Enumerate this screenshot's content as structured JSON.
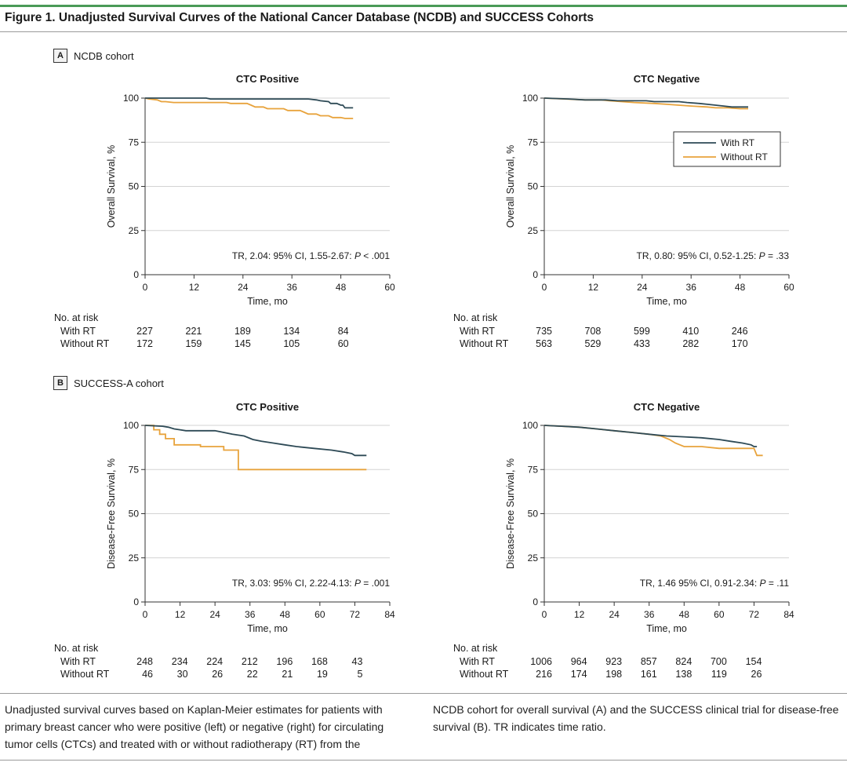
{
  "figure": {
    "title": "Figure 1. Unadjusted Survival Curves of the National Cancer Database (NCDB) and SUCCESS Cohorts",
    "caption_left": "Unadjusted survival curves based on Kaplan-Meier estimates for patients with primary breast cancer who were positive (left) or negative (right) for circulating tumor cells (CTCs) and treated with or without radiotherapy (RT) from the",
    "caption_right": "NCDB cohort for overall survival (A) and the SUCCESS clinical trial for disease-free survival (B). TR indicates time ratio."
  },
  "panels": [
    {
      "letter": "A",
      "label": "NCDB cohort"
    },
    {
      "letter": "B",
      "label": "SUCCESS-A cohort"
    }
  ],
  "colors": {
    "with_rt": "#2e4a56",
    "without_rt": "#e8a33c",
    "axis": "#333333",
    "grid": "#d3d3d3"
  },
  "legend": [
    "With RT",
    "Without RT"
  ],
  "risk_table_labels": {
    "header": "No. at risk",
    "with_rt": "With RT",
    "without_rt": "Without RT"
  },
  "chart_data": [
    {
      "type": "line",
      "panel": "A",
      "title": "CTC Positive",
      "xlabel": "Time, mo",
      "ylabel": "Overall Survival, %",
      "xlim": [
        0,
        60
      ],
      "ylim": [
        0,
        100
      ],
      "xticks": [
        0,
        12,
        24,
        36,
        48,
        60
      ],
      "yticks": [
        0,
        25,
        50,
        75,
        100
      ],
      "annotation": {
        "pre": "TR, 2.04: 95% CI, 1.55-2.67: ",
        "italic": "P",
        "post": " < .001"
      },
      "legend": false,
      "series": [
        {
          "name": "With RT",
          "points": [
            [
              0,
              100
            ],
            [
              15,
              100
            ],
            [
              16,
              99.5
            ],
            [
              25,
              99.5
            ],
            [
              40,
              99.5
            ],
            [
              42,
              99
            ],
            [
              43,
              98.5
            ],
            [
              45,
              98
            ],
            [
              45.5,
              97
            ],
            [
              47,
              97
            ],
            [
              48,
              96
            ],
            [
              48.5,
              96
            ],
            [
              49,
              94.5
            ],
            [
              51,
              94.5
            ]
          ]
        },
        {
          "name": "Without RT",
          "points": [
            [
              0,
              100
            ],
            [
              1,
              99.5
            ],
            [
              3,
              99
            ],
            [
              4,
              98
            ],
            [
              5,
              98
            ],
            [
              7,
              97.5
            ],
            [
              20,
              97.5
            ],
            [
              21,
              97
            ],
            [
              25,
              97
            ],
            [
              26,
              96
            ],
            [
              27,
              95
            ],
            [
              29,
              95
            ],
            [
              30,
              94
            ],
            [
              34,
              94
            ],
            [
              35,
              93
            ],
            [
              38,
              93
            ],
            [
              39,
              92
            ],
            [
              40,
              91
            ],
            [
              42,
              91
            ],
            [
              43,
              90
            ],
            [
              45,
              90
            ],
            [
              46,
              89
            ],
            [
              48,
              89
            ],
            [
              49,
              88.5
            ],
            [
              51,
              88.5
            ]
          ]
        }
      ],
      "at_risk": {
        "times": [
          0,
          12,
          24,
          36,
          48
        ],
        "with_rt": [
          "227",
          "221",
          "189",
          "134",
          "84"
        ],
        "without_rt": [
          "172",
          "159",
          "145",
          "105",
          "60"
        ]
      }
    },
    {
      "type": "line",
      "panel": "A",
      "title": "CTC Negative",
      "xlabel": "Time, mo",
      "ylabel": "Overall Survival, %",
      "xlim": [
        0,
        60
      ],
      "ylim": [
        0,
        100
      ],
      "xticks": [
        0,
        12,
        24,
        36,
        48,
        60
      ],
      "yticks": [
        0,
        25,
        50,
        75,
        100
      ],
      "annotation": {
        "pre": "TR, 0.80: 95% CI, 0.52-1.25: ",
        "italic": "P",
        "post": " = .33"
      },
      "legend": true,
      "series": [
        {
          "name": "With RT",
          "points": [
            [
              0,
              100
            ],
            [
              6,
              99.5
            ],
            [
              10,
              99
            ],
            [
              15,
              99
            ],
            [
              18,
              98.5
            ],
            [
              25,
              98.5
            ],
            [
              27,
              98
            ],
            [
              33,
              98
            ],
            [
              35,
              97.5
            ],
            [
              38,
              97
            ],
            [
              40,
              96.5
            ],
            [
              42,
              96
            ],
            [
              44,
              95.5
            ],
            [
              46,
              95
            ],
            [
              50,
              95
            ]
          ]
        },
        {
          "name": "Without RT",
          "points": [
            [
              0,
              100
            ],
            [
              5,
              99.5
            ],
            [
              10,
              99
            ],
            [
              14,
              99
            ],
            [
              16,
              98.5
            ],
            [
              19,
              98
            ],
            [
              22,
              97.5
            ],
            [
              27,
              97
            ],
            [
              30,
              96.5
            ],
            [
              33,
              96
            ],
            [
              36,
              95.5
            ],
            [
              40,
              95
            ],
            [
              42,
              94.5
            ],
            [
              45,
              94.5
            ],
            [
              48,
              94
            ],
            [
              50,
              94
            ]
          ]
        }
      ],
      "at_risk": {
        "times": [
          0,
          12,
          24,
          36,
          48
        ],
        "with_rt": [
          "735",
          "708",
          "599",
          "410",
          "246"
        ],
        "without_rt": [
          "563",
          "529",
          "433",
          "282",
          "170"
        ]
      }
    },
    {
      "type": "line",
      "panel": "B",
      "title": "CTC Positive",
      "xlabel": "Time, mo",
      "ylabel": "Disease-Free Survival, %",
      "xlim": [
        0,
        84
      ],
      "ylim": [
        0,
        100
      ],
      "xticks": [
        0,
        12,
        24,
        36,
        48,
        60,
        72,
        84
      ],
      "yticks": [
        0,
        25,
        50,
        75,
        100
      ],
      "annotation": {
        "pre": "TR, 3.03: 95% CI, 2.22-4.13: ",
        "italic": "P",
        "post": " = .001"
      },
      "legend": false,
      "series": [
        {
          "name": "With RT",
          "points": [
            [
              0,
              100
            ],
            [
              6,
              99.5
            ],
            [
              8,
              99
            ],
            [
              10,
              98
            ],
            [
              12,
              97.5
            ],
            [
              14,
              97
            ],
            [
              24,
              97
            ],
            [
              27,
              96
            ],
            [
              30,
              95
            ],
            [
              34,
              94
            ],
            [
              37,
              92
            ],
            [
              40,
              91
            ],
            [
              44,
              90
            ],
            [
              48,
              89
            ],
            [
              52,
              88
            ],
            [
              58,
              87
            ],
            [
              64,
              86
            ],
            [
              68,
              85
            ],
            [
              71,
              84
            ],
            [
              72,
              83
            ],
            [
              76,
              83
            ]
          ]
        },
        {
          "name": "Without RT",
          "points": [
            [
              0,
              100
            ],
            [
              3,
              100
            ],
            [
              3,
              97.5
            ],
            [
              5,
              97.5
            ],
            [
              5,
              95
            ],
            [
              7,
              95
            ],
            [
              7,
              92.5
            ],
            [
              10,
              92.5
            ],
            [
              10,
              89
            ],
            [
              19,
              89
            ],
            [
              19,
              88
            ],
            [
              27,
              88
            ],
            [
              27,
              86
            ],
            [
              32,
              86
            ],
            [
              32,
              75
            ],
            [
              76,
              75
            ]
          ]
        }
      ],
      "at_risk": {
        "times": [
          0,
          12,
          24,
          36,
          48,
          60,
          72
        ],
        "with_rt": [
          "248",
          "234",
          "224",
          "212",
          "196",
          "168",
          "43"
        ],
        "without_rt": [
          "46",
          "30",
          "26",
          "22",
          "21",
          "19",
          "5"
        ]
      }
    },
    {
      "type": "line",
      "panel": "B",
      "title": "CTC Negative",
      "xlabel": "Time, mo",
      "ylabel": "Disease-Free Survival, %",
      "xlim": [
        0,
        84
      ],
      "ylim": [
        0,
        100
      ],
      "xticks": [
        0,
        12,
        24,
        36,
        48,
        60,
        72,
        84
      ],
      "yticks": [
        0,
        25,
        50,
        75,
        100
      ],
      "annotation": {
        "pre": "TR, 1.46 95% CI, 0.91-2.34: ",
        "italic": "P",
        "post": " = .11"
      },
      "legend": false,
      "series": [
        {
          "name": "With RT",
          "points": [
            [
              0,
              100
            ],
            [
              6,
              99.5
            ],
            [
              12,
              99
            ],
            [
              18,
              98
            ],
            [
              24,
              97
            ],
            [
              30,
              96
            ],
            [
              36,
              95
            ],
            [
              42,
              94
            ],
            [
              48,
              93.5
            ],
            [
              54,
              93
            ],
            [
              60,
              92
            ],
            [
              64,
              91
            ],
            [
              68,
              90
            ],
            [
              71,
              89
            ],
            [
              72,
              88
            ],
            [
              73,
              88
            ]
          ]
        },
        {
          "name": "Without RT",
          "points": [
            [
              0,
              100
            ],
            [
              6,
              99.5
            ],
            [
              12,
              99
            ],
            [
              18,
              98
            ],
            [
              24,
              97
            ],
            [
              30,
              96
            ],
            [
              36,
              95
            ],
            [
              40,
              94
            ],
            [
              43,
              92
            ],
            [
              45,
              90
            ],
            [
              48,
              88
            ],
            [
              54,
              88
            ],
            [
              60,
              87
            ],
            [
              66,
              87
            ],
            [
              72,
              87
            ],
            [
              73,
              83
            ],
            [
              75,
              83
            ]
          ]
        }
      ],
      "at_risk": {
        "times": [
          0,
          12,
          24,
          36,
          48,
          60,
          72
        ],
        "with_rt": [
          "1006",
          "964",
          "923",
          "857",
          "824",
          "700",
          "154"
        ],
        "without_rt": [
          "216",
          "174",
          "198",
          "161",
          "138",
          "119",
          "26"
        ]
      }
    }
  ]
}
